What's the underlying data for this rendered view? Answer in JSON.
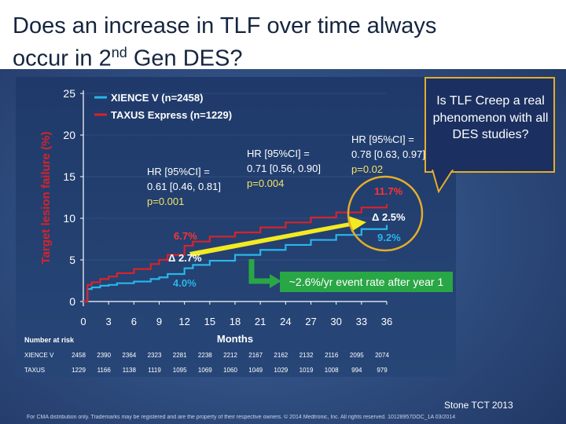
{
  "slide": {
    "title_line1": "Does an increase in TLF over time always",
    "title_line2_pre": "occur in 2",
    "title_sup": "nd",
    "title_line2_post": " Gen DES?",
    "callout": "Is TLF Creep a real phenomenon with all DES studies?",
    "source": "Stone TCT 2013",
    "disclaimer": "For CMA distribution only.  Trademarks may be registered and are the property of their respective owners.  © 2014 Medtronic, Inc. All rights reserved. 10128957DOC_1A  03/2014"
  },
  "colors": {
    "xience": "#29b6e8",
    "taxus": "#d8232a",
    "trend_arrow": "#f3ea22",
    "event_rate_box": "#29a645",
    "callout_border": "#e4ad2a"
  },
  "chart_data": {
    "type": "line",
    "ylabel": "Target lesion failure (%)",
    "xlabel": "Months",
    "ylim": [
      0,
      25
    ],
    "yticks": [
      0,
      5,
      10,
      15,
      20,
      25
    ],
    "xlim": [
      0,
      36
    ],
    "xticks": [
      0,
      3,
      6,
      9,
      12,
      15,
      18,
      21,
      24,
      27,
      30,
      33,
      36
    ],
    "series": [
      {
        "name": "XIENCE V (n=2458)",
        "color_key": "xience",
        "x": [
          0,
          0.5,
          1,
          2,
          3,
          4,
          6,
          8,
          9,
          10,
          12,
          13,
          15,
          18,
          21,
          24,
          27,
          30,
          33,
          36
        ],
        "y": [
          0,
          1.5,
          1.7,
          1.9,
          2.0,
          2.2,
          2.4,
          2.7,
          2.9,
          3.3,
          4.0,
          4.4,
          4.9,
          5.6,
          6.2,
          6.8,
          7.4,
          8.0,
          8.7,
          9.2
        ]
      },
      {
        "name": "TAXUS Express (n=1229)",
        "color_key": "taxus",
        "x": [
          0,
          0.5,
          1,
          2,
          3,
          4,
          6,
          8,
          9,
          10,
          12,
          13,
          15,
          18,
          21,
          24,
          27,
          30,
          33,
          36
        ],
        "y": [
          0,
          2.0,
          2.3,
          2.7,
          3.0,
          3.4,
          3.9,
          4.5,
          5.0,
          5.6,
          6.7,
          7.2,
          7.8,
          8.3,
          8.9,
          9.5,
          10.1,
          10.7,
          11.3,
          11.7
        ]
      }
    ],
    "annotations": {
      "hr12": [
        "HR [95%CI] =",
        "0.61 [0.46, 0.81]",
        "p=0.001"
      ],
      "hr24": [
        "HR [95%CI] =",
        "0.71 [0.56, 0.90]",
        "p=0.004"
      ],
      "hr36": [
        "HR [95%CI] =",
        "0.78 [0.63, 0.97]",
        "p=0.02"
      ],
      "taxus_12": "6.7%",
      "delta_12": "Δ 2.7%",
      "xience_12": "4.0%",
      "taxus_36": "11.7%",
      "delta_36": "Δ 2.5%",
      "xience_36": "9.2%",
      "event_rate": "~2.6%/yr event rate after year 1"
    },
    "risk_table": {
      "title": "Number at risk",
      "rows": [
        {
          "label": "XIENCE V",
          "values": [
            2458,
            2390,
            2364,
            2323,
            2281,
            2238,
            2212,
            2167,
            2162,
            2132,
            2116,
            2095,
            2074
          ]
        },
        {
          "label": "TAXUS",
          "values": [
            1229,
            1166,
            1138,
            1119,
            1095,
            1069,
            1060,
            1049,
            1029,
            1019,
            1008,
            994,
            979
          ]
        }
      ]
    }
  }
}
